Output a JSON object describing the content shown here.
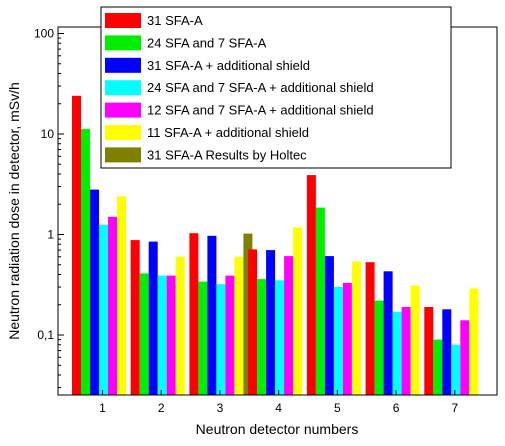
{
  "chart_data": {
    "type": "bar",
    "title": "",
    "xlabel": "Neutron detector numbers",
    "ylabel": "Neutron radiation dose in detector, mSv/h",
    "yscale": "log",
    "ylim": [
      0.02,
      100
    ],
    "y_ticks": [
      {
        "value": 0.1,
        "label": "0,1"
      },
      {
        "value": 1,
        "label": "1"
      },
      {
        "value": 10,
        "label": "10"
      },
      {
        "value": 100,
        "label": "100"
      }
    ],
    "categories": [
      "1",
      "2",
      "3",
      "4",
      "5",
      "6",
      "7"
    ],
    "legend_position": "top-right",
    "series": [
      {
        "name": "31 SFA-A",
        "color": "#ff0000",
        "values": [
          24,
          0.88,
          1.03,
          0.71,
          3.9,
          0.53,
          0.19
        ]
      },
      {
        "name": "24 SFA and 7 SFA-A",
        "color": "#00ee00",
        "values": [
          11.2,
          0.41,
          0.34,
          0.36,
          1.85,
          0.22,
          0.09
        ]
      },
      {
        "name": "31 SFA-A + additional shield",
        "color": "#0000ff",
        "values": [
          2.8,
          0.85,
          0.97,
          0.7,
          0.61,
          0.43,
          0.18
        ]
      },
      {
        "name": "24 SFA and 7 SFA-A + additional shield",
        "color": "#00ffff",
        "values": [
          1.25,
          0.39,
          0.32,
          0.35,
          0.3,
          0.17,
          0.08
        ]
      },
      {
        "name": "12 SFA and 7 SFA-A + additional shield",
        "color": "#ff00ff",
        "values": [
          1.5,
          0.39,
          0.39,
          0.61,
          0.33,
          0.19,
          0.14
        ]
      },
      {
        "name": "11 SFA-A + additional shield",
        "color": "#ffff00",
        "values": [
          2.4,
          0.6,
          0.6,
          1.18,
          0.54,
          0.31,
          0.29
        ]
      },
      {
        "name": "31 SFA-A Results by Holtec",
        "color": "#808000",
        "values": [
          null,
          null,
          1.02,
          null,
          null,
          null,
          null
        ]
      }
    ]
  }
}
